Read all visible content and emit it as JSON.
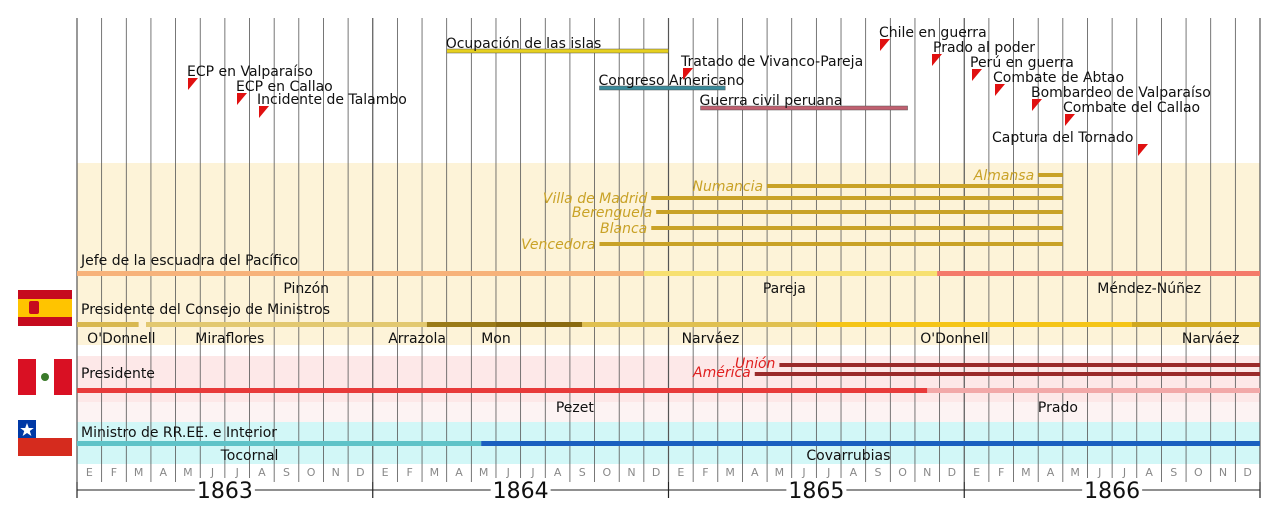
{
  "colors": {
    "spain_band": "#fdf3d8",
    "peru_band": "#fde8e8",
    "chile_band": "#d2f7f7",
    "ship_gold": "#c9a227",
    "gridline": "#444444"
  },
  "timeline": {
    "years": [
      "1863",
      "1864",
      "1865",
      "1866"
    ],
    "months": [
      "E",
      "F",
      "M",
      "A",
      "M",
      "J",
      "J",
      "A",
      "S",
      "O",
      "N",
      "D"
    ]
  },
  "events": [
    {
      "label": "ECP en Valparaíso",
      "month": 4.6
    },
    {
      "label": "ECP en Callao",
      "month": 6.6
    },
    {
      "label": "Incidente de Talambo",
      "month": 7.5
    },
    {
      "label": "Chile en guerra",
      "month": 32.2
    },
    {
      "label": "Prado al poder",
      "month": 34.5
    },
    {
      "label": "Perú en guerra",
      "month": 36.0
    },
    {
      "label": "Combate de Abtao",
      "month": 37.0
    },
    {
      "label": "Bombardeo de Valparaíso",
      "month": 38.9
    },
    {
      "label": "Combate del Callao",
      "month": 40.0
    },
    {
      "label": "Captura del Tornado",
      "month": 42.7
    },
    {
      "label": "Tratado de Vivanco-Pareja",
      "month": 25.0
    }
  ],
  "periods": [
    {
      "label": "Ocupación de las islas",
      "start": 15.0,
      "end": 24.0,
      "color": "#e6d020"
    },
    {
      "label": "Congreso Americano",
      "start": 21.2,
      "end": 26.3,
      "color": "#3a8a9a"
    },
    {
      "label": "Guerra civil peruana",
      "start": 25.3,
      "end": 33.7,
      "color": "#c06070"
    }
  ],
  "spain_ships": [
    {
      "name": "Almansa",
      "start": 39.0,
      "end": 40.0
    },
    {
      "name": "Numancia",
      "start": 28.0,
      "end": 40.0
    },
    {
      "name": "Villa de Madrid",
      "start": 23.3,
      "end": 40.0
    },
    {
      "name": "Berenguela",
      "start": 23.5,
      "end": 40.0
    },
    {
      "name": "Blanca",
      "start": 23.3,
      "end": 40.0
    },
    {
      "name": "Vencedora",
      "start": 21.2,
      "end": 40.0
    }
  ],
  "spain": {
    "squadron_title": "Jefe de la escuadra del Pacífico",
    "squadron": [
      {
        "name": "Pinzón",
        "start": 0,
        "end": 23.0,
        "color": "#f7b27a"
      },
      {
        "name": "Pareja",
        "start": 23.0,
        "end": 34.9,
        "color": "#f7e070"
      },
      {
        "name": "Méndez-Núñez",
        "start": 34.9,
        "end": 48,
        "color": "#f47a6a"
      }
    ],
    "council_title": "Presidente del Consejo de Ministros",
    "council": [
      {
        "name": "O'Donnell",
        "start": 0,
        "end": 2.5,
        "color": "#d8b850"
      },
      {
        "name": "Miraflores",
        "start": 2.8,
        "end": 14.2,
        "color": "#e2c870"
      },
      {
        "name": "Arrazola",
        "start": 14.2,
        "end": 17.0,
        "color": "#b08a20"
      },
      {
        "name": "Mon",
        "start": 14.2,
        "end": 20.5,
        "color": "#8a6a10"
      },
      {
        "name": "Narváez",
        "start": 20.5,
        "end": 30.0,
        "color": "#e0c050"
      },
      {
        "name": "O'Donnell",
        "start": 30.0,
        "end": 42.8,
        "color": "#f5c518"
      },
      {
        "name": "Narváez",
        "start": 42.8,
        "end": 48,
        "color": "#d0a820"
      }
    ]
  },
  "peru": {
    "title": "Presidente",
    "ships": [
      {
        "name": "Unión",
        "start": 28.5,
        "end": 48
      },
      {
        "name": "América",
        "start": 27.5,
        "end": 48
      }
    ],
    "presidents": [
      {
        "name": "Pezet",
        "start": 0,
        "end": 34.5,
        "color": "#e83a3a"
      },
      {
        "name": "Prado",
        "start": 34.5,
        "end": 48,
        "color": "#f2a8a8"
      }
    ]
  },
  "chile": {
    "title": "Ministro de RR.EE. e Interior",
    "ministers": [
      {
        "name": "Tocornal",
        "start": 0,
        "end": 16.4,
        "color": "#5fc3c8"
      },
      {
        "name": "Covarrubias",
        "start": 16.4,
        "end": 48,
        "color": "#1a5fbf"
      }
    ]
  }
}
